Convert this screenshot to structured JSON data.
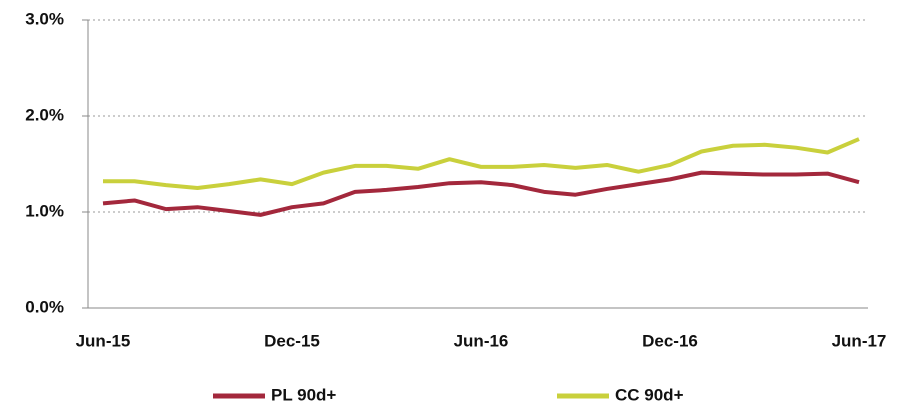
{
  "chart_data": {
    "type": "line",
    "categories": [
      "Jun-15",
      null,
      null,
      null,
      null,
      null,
      "Dec-15",
      null,
      null,
      null,
      null,
      null,
      "Jun-16",
      null,
      null,
      null,
      null,
      null,
      "Dec-16",
      null,
      null,
      null,
      null,
      null,
      "Jun-17"
    ],
    "series": [
      {
        "name": "PL 90d+",
        "color": "#a3283c",
        "values": [
          1.09,
          1.12,
          1.03,
          1.05,
          1.01,
          0.97,
          1.05,
          1.09,
          1.21,
          1.23,
          1.26,
          1.3,
          1.31,
          1.28,
          1.21,
          1.18,
          1.24,
          1.29,
          1.34,
          1.41,
          1.4,
          1.39,
          1.39,
          1.4,
          1.31
        ]
      },
      {
        "name": "CC 90d+",
        "color": "#c9d03c",
        "values": [
          1.32,
          1.32,
          1.28,
          1.25,
          1.29,
          1.34,
          1.29,
          1.41,
          1.48,
          1.48,
          1.45,
          1.55,
          1.47,
          1.47,
          1.49,
          1.46,
          1.49,
          1.42,
          1.49,
          1.63,
          1.69,
          1.7,
          1.67,
          1.62,
          1.76
        ]
      }
    ],
    "ylim": [
      0,
      3
    ],
    "yticks": [
      {
        "value": 0,
        "label": "0.0%"
      },
      {
        "value": 1,
        "label": "1.0%"
      },
      {
        "value": 2,
        "label": "2.0%"
      },
      {
        "value": 3,
        "label": "3.0%"
      }
    ],
    "grid": true,
    "legend": "bottom"
  }
}
